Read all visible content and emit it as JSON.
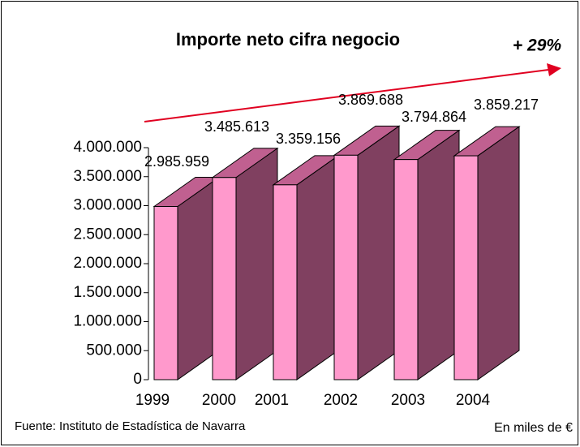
{
  "chart_data": {
    "type": "bar3d",
    "title": "Importe neto cifra negocio",
    "annotation": "+ 29%",
    "source": "Fuente: Instituto de Estadística de Navarra",
    "units": "En miles de €",
    "categories": [
      "1999",
      "2000",
      "2001",
      "2002",
      "2003",
      "2004"
    ],
    "values": [
      2985959,
      3485613,
      3359156,
      3869688,
      3794864,
      3859217
    ],
    "value_labels": [
      "2.985.959",
      "3.485.613",
      "3.359.156",
      "3.869.688",
      "3.794.864",
      "3.859.217"
    ],
    "color": "#ff99cc",
    "side_color": "#804060",
    "top_color": "#c06090",
    "arrow_color": "#e00020",
    "ylim": [
      0,
      4000000
    ],
    "yticks": [
      0,
      {
        "value": 500000,
        "label": "500.000"
      },
      {
        "value": 1000000,
        "label": "1.000.000"
      },
      {
        "value": 1500000,
        "label": "1.500.000"
      },
      {
        "value": 2000000,
        "label": "2.000.000"
      },
      {
        "value": 2500000,
        "label": "2.500.000"
      },
      {
        "value": 3000000,
        "label": "3.000.000"
      },
      {
        "value": 3500000,
        "label": "3.500.000"
      },
      {
        "value": 4000000,
        "label": "4.000.000"
      }
    ]
  }
}
